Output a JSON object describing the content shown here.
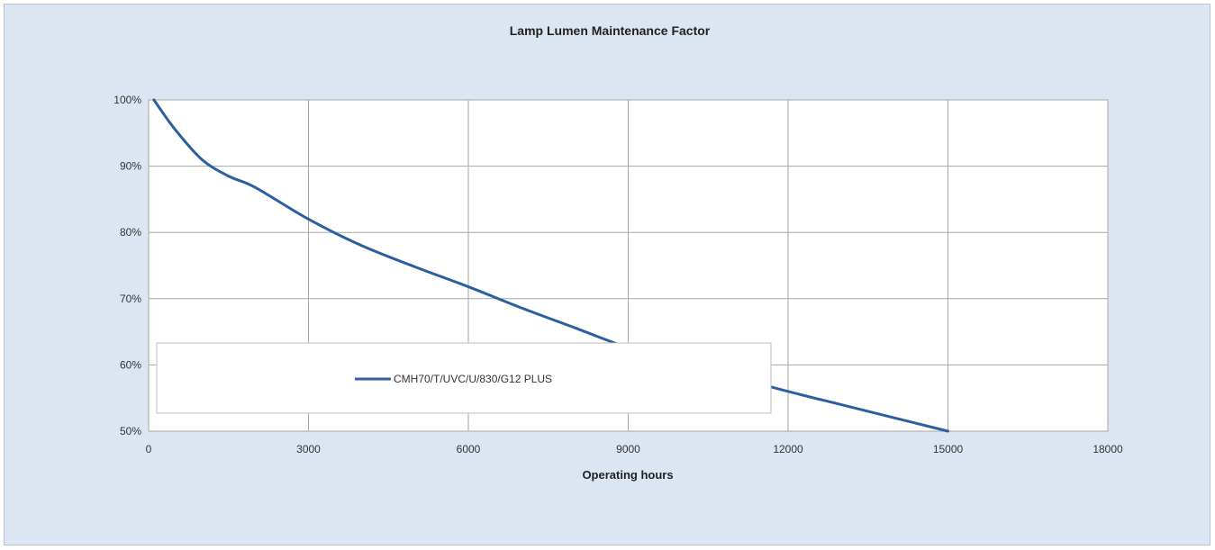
{
  "chart_data": {
    "type": "line",
    "title": "Lamp Lumen Maintenance Factor",
    "xlabel": "Operating hours",
    "ylabel": "",
    "xlim": [
      0,
      18000
    ],
    "ylim": [
      50,
      100
    ],
    "x_ticks": [
      0,
      3000,
      6000,
      9000,
      12000,
      15000,
      18000
    ],
    "x_tick_labels": [
      "0",
      "3000",
      "6000",
      "9000",
      "12000",
      "15000",
      "18000"
    ],
    "y_ticks": [
      50,
      60,
      70,
      80,
      90,
      100
    ],
    "y_tick_labels": [
      "50%",
      "60%",
      "70%",
      "80%",
      "90%",
      "100%"
    ],
    "grid": true,
    "legend_position": "lower-left",
    "colors": {
      "series": "#2a5fa0",
      "plot_bg": "#ffffff",
      "frame_bg": "#dce6f2",
      "grid": "#a6a6a6"
    },
    "series": [
      {
        "name": "CMH70/T/UVC/U/830/G12 PLUS",
        "x": [
          100,
          500,
          1000,
          1500,
          2000,
          3000,
          4000,
          5000,
          6000,
          7000,
          8000,
          9000,
          10000,
          11000,
          12000,
          13000,
          14000,
          15000
        ],
        "y": [
          100,
          95.5,
          91,
          88.5,
          86.8,
          82,
          78,
          74.8,
          71.8,
          68.6,
          65.6,
          62.6,
          60.5,
          58.2,
          56,
          54,
          52,
          50
        ]
      }
    ]
  }
}
